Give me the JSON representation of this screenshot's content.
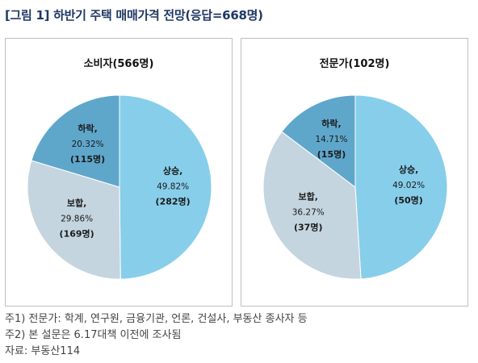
{
  "figure": {
    "title": "[그림 1] 하반기 주택 매매가격 전망(응답=668명)"
  },
  "colors": {
    "rise": "#87CEEB",
    "hold": "#C5D5DF",
    "fall": "#5FA6CB"
  },
  "chart_data": [
    {
      "type": "pie",
      "title": "소비자(566명)",
      "slices": [
        {
          "name": "상승,",
          "value": 49.82,
          "pct_label": "49.82%",
          "count_label": "(282명)",
          "color": "#87CEEB"
        },
        {
          "name": "보합,",
          "value": 29.86,
          "pct_label": "29.86%",
          "count_label": "(169명)",
          "color": "#C5D5DF"
        },
        {
          "name": "하락,",
          "value": 20.32,
          "pct_label": "20.32%",
          "count_label": "(115명)",
          "color": "#5FA6CB"
        }
      ]
    },
    {
      "type": "pie",
      "title": "전문가(102명)",
      "slices": [
        {
          "name": "상승,",
          "value": 49.02,
          "pct_label": "49.02%",
          "count_label": "(50명)",
          "color": "#87CEEB"
        },
        {
          "name": "보합,",
          "value": 36.27,
          "pct_label": "36.27%",
          "count_label": "(37명)",
          "color": "#C5D5DF"
        },
        {
          "name": "하락,",
          "value": 14.71,
          "pct_label": "14.71%",
          "count_label": "(15명)",
          "color": "#5FA6CB"
        }
      ]
    }
  ],
  "notes": [
    "주1) 전문가: 학계, 연구원, 금융기관, 언론, 건설사, 부동산 종사자 등",
    "주2) 본 설문은 6.17대책 이전에 조사됨",
    "자료: 부동산114"
  ]
}
